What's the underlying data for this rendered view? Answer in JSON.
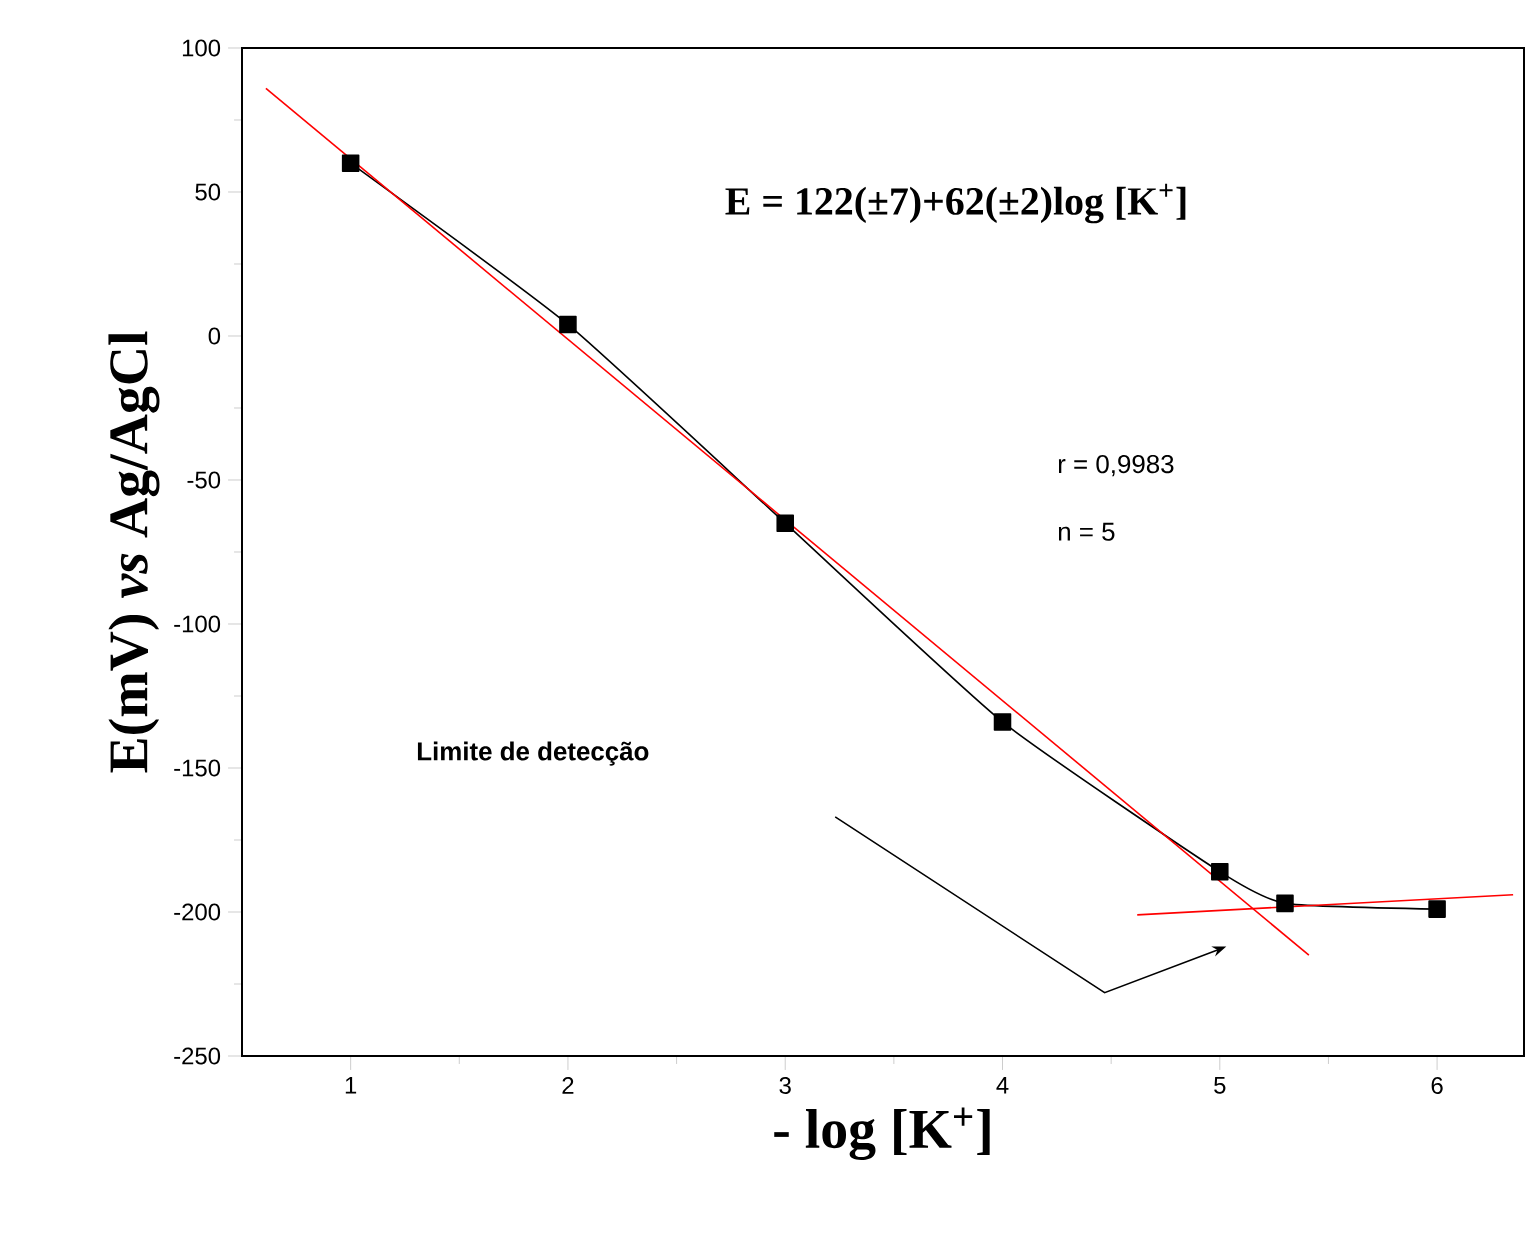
{
  "chart_data": {
    "type": "line",
    "xlabel": "- log [K$^{+}$]",
    "ylabel": "E(mV) *vs* Ag/AgCl",
    "xlim": [
      0.5,
      6.4
    ],
    "ylim": [
      -250,
      100
    ],
    "xticks": [
      1,
      2,
      3,
      4,
      5,
      6
    ],
    "yticks": [
      -250,
      -200,
      -150,
      -100,
      -50,
      0,
      50,
      100
    ],
    "series": [
      {
        "color": "#000000",
        "marker": "square",
        "x": [
          1,
          2,
          3,
          4,
          5,
          5.3,
          6
        ],
        "values": [
          60,
          4,
          -65,
          -134,
          -186,
          -197,
          -199
        ]
      },
      {
        "color": "#ff0000",
        "marker": "none",
        "x": [
          0.61,
          5.41
        ],
        "values": [
          86,
          -215
        ]
      },
      {
        "color": "#ff0000",
        "marker": "none",
        "x": [
          4.62,
          6.35
        ],
        "values": [
          -201,
          -194
        ]
      }
    ],
    "annotations": [
      "E = 122(±7)+62(±2)log [K$^{+}$]",
      "r = 0,9983",
      "n = 5",
      "**Limite de detecção**"
    ]
  }
}
